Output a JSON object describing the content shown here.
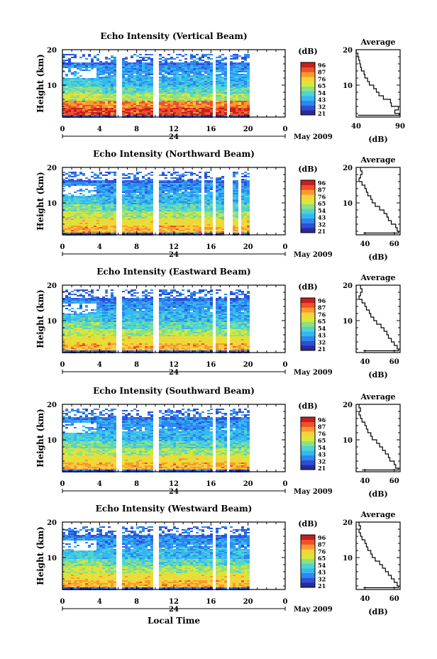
{
  "chart_data": {
    "type": "heatmap",
    "x_axis": {
      "ticks": [
        "0",
        "4",
        "8",
        "12",
        "16",
        "20",
        "0"
      ],
      "range_hours": [
        0,
        24
      ],
      "day_label": "24",
      "month_label": "May 2009",
      "bottom_label": "Local Time"
    },
    "y_axis": {
      "label": "Height (km)",
      "ticks": [
        "20",
        "10"
      ],
      "range_km": [
        1,
        20
      ]
    },
    "colorbar": {
      "unit": "(dB)",
      "tick_labels": [
        "96",
        "87",
        "76",
        "65",
        "54",
        "43",
        "32",
        "21"
      ],
      "colors": [
        "#2a2a9c",
        "#2d4fd6",
        "#2f86f0",
        "#33b8f3",
        "#4fd4d0",
        "#8fe07f",
        "#d8e838",
        "#f8d23a",
        "#f99a2e",
        "#f0502a",
        "#c71e1e"
      ]
    },
    "data_gaps_hours": [
      [
        5.7,
        6.2
      ],
      [
        9.7,
        10.2
      ],
      [
        15.9,
        16.3
      ],
      [
        17.6,
        17.9
      ]
    ],
    "panels": [
      {
        "title": "Echo Intensity (Vertical Beam)",
        "profile": {
          "title": "Average",
          "xlabel": "(dB)",
          "xticks": [
            "40",
            "90"
          ],
          "xlim": [
            40,
            90
          ],
          "heights_km": [
            1.5,
            2,
            3,
            4,
            5,
            6,
            7,
            8,
            9,
            10,
            11,
            12,
            13,
            14,
            15,
            16,
            17,
            18,
            19,
            20
          ],
          "values_db": [
            42,
            89,
            84,
            88,
            80,
            79,
            71,
            66,
            63,
            60,
            55,
            53,
            50,
            49,
            46,
            45,
            44,
            43,
            42,
            40
          ]
        }
      },
      {
        "title": "Echo Intensity (Northward Beam)",
        "profile": {
          "title": "Average",
          "xlabel": "(dB)",
          "xticks": [
            "40",
            "60"
          ],
          "xlim": [
            34,
            64
          ],
          "heights_km": [
            1.5,
            2,
            3,
            4,
            5,
            6,
            7,
            8,
            9,
            10,
            11,
            12,
            13,
            14,
            15,
            16,
            17,
            18,
            19,
            20
          ],
          "values_db": [
            39,
            63,
            62,
            61,
            58,
            56,
            55,
            53,
            50,
            47,
            45,
            44,
            42,
            41,
            40,
            38,
            36,
            37,
            38,
            37
          ]
        }
      },
      {
        "title": "Echo Intensity (Eastward Beam)",
        "profile": {
          "title": "Average",
          "xlabel": "(dB)",
          "xticks": [
            "40",
            "60"
          ],
          "xlim": [
            34,
            64
          ],
          "heights_km": [
            1.5,
            2,
            3,
            4,
            5,
            6,
            7,
            8,
            9,
            10,
            11,
            12,
            13,
            14,
            15,
            16,
            17,
            18,
            19,
            20
          ],
          "values_db": [
            39,
            63,
            62,
            60,
            58,
            56,
            55,
            53,
            51,
            48,
            46,
            44,
            43,
            41,
            40,
            38,
            36,
            37,
            38,
            37
          ]
        }
      },
      {
        "title": "Echo Intensity (Southward Beam)",
        "profile": {
          "title": "Average",
          "xlabel": "(dB)",
          "xticks": [
            "40",
            "60"
          ],
          "xlim": [
            34,
            64
          ],
          "heights_km": [
            1.5,
            2,
            3,
            4,
            5,
            6,
            7,
            8,
            9,
            10,
            11,
            12,
            13,
            14,
            15,
            16,
            17,
            18,
            19,
            20
          ],
          "values_db": [
            38,
            63,
            61,
            60,
            57,
            56,
            54,
            52,
            50,
            48,
            45,
            44,
            42,
            41,
            40,
            38,
            37,
            36,
            37,
            36
          ]
        }
      },
      {
        "title": "Echo Intensity (Westward Beam)",
        "profile": {
          "title": "Average",
          "xlabel": "(dB)",
          "xticks": [
            "40",
            "60"
          ],
          "xlim": [
            34,
            64
          ],
          "heights_km": [
            1.5,
            2,
            3,
            4,
            5,
            6,
            7,
            8,
            9,
            10,
            11,
            12,
            13,
            14,
            15,
            16,
            17,
            18,
            19,
            20
          ],
          "values_db": [
            39,
            63,
            62,
            60,
            58,
            56,
            54,
            52,
            50,
            47,
            45,
            44,
            42,
            41,
            40,
            38,
            37,
            36,
            37,
            36
          ]
        }
      }
    ]
  }
}
